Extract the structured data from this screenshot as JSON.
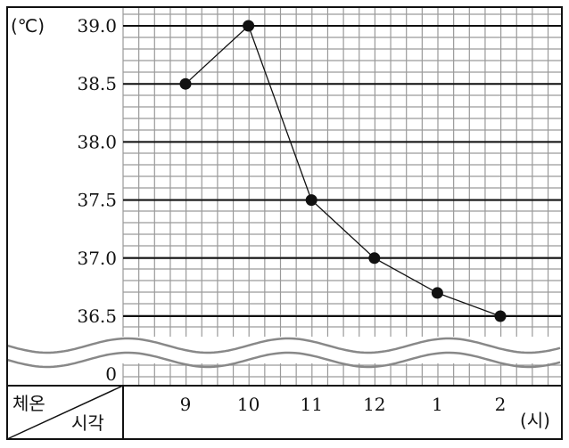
{
  "chart_data": {
    "type": "line",
    "unit_label": "(℃)",
    "x_unit_label": "(시)",
    "header_top_label": "체온",
    "header_bottom_label": "시각",
    "y_tick_labels": [
      "39.0",
      "38.5",
      "38.0",
      "37.5",
      "37.0",
      "36.5"
    ],
    "y_zero_label": "0",
    "categories": [
      "9",
      "10",
      "11",
      "12",
      "1",
      "2"
    ],
    "values": [
      38.5,
      39.0,
      37.5,
      37.0,
      36.7,
      36.5
    ],
    "ylim": [
      36.5,
      39.0
    ],
    "y_axis_broken": true,
    "grid": true
  }
}
